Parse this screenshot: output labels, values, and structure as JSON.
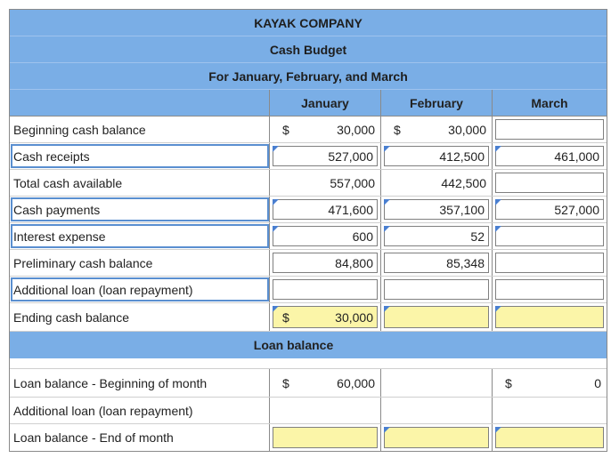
{
  "header": {
    "company": "KAYAK COMPANY",
    "title": "Cash Budget",
    "period": "For January, February, and March"
  },
  "columns": [
    "January",
    "February",
    "March"
  ],
  "currency": "$",
  "cash_rows": [
    {
      "label": "Beginning cash balance",
      "jan": "30,000",
      "feb": "30,000",
      "mar": ""
    },
    {
      "label": "Cash receipts",
      "jan": "527,000",
      "feb": "412,500",
      "mar": "461,000"
    },
    {
      "label": "Total cash available",
      "jan": "557,000",
      "feb": "442,500",
      "mar": ""
    },
    {
      "label": "Cash payments",
      "jan": "471,600",
      "feb": "357,100",
      "mar": "527,000"
    },
    {
      "label": "Interest expense",
      "jan": "600",
      "feb": "52",
      "mar": ""
    },
    {
      "label": "Preliminary cash balance",
      "jan": "84,800",
      "feb": "85,348",
      "mar": ""
    },
    {
      "label": "Additional loan (loan repayment)",
      "jan": "",
      "feb": "",
      "mar": ""
    },
    {
      "label": "Ending cash balance",
      "jan": "30,000",
      "feb": "",
      "mar": ""
    }
  ],
  "loan_section_title": "Loan balance",
  "loan_rows": [
    {
      "label": "Loan balance - Beginning of month",
      "jan": "60,000",
      "feb": "",
      "mar": "0"
    },
    {
      "label": "Additional loan (loan repayment)",
      "jan": "",
      "feb": "",
      "mar": ""
    },
    {
      "label": "Loan balance - End of month",
      "jan": "",
      "feb": "",
      "mar": ""
    }
  ],
  "colors": {
    "header_blue": "#7aaee6",
    "input_yellow": "#fbf5a8",
    "marker_blue": "#4a7fd0"
  }
}
